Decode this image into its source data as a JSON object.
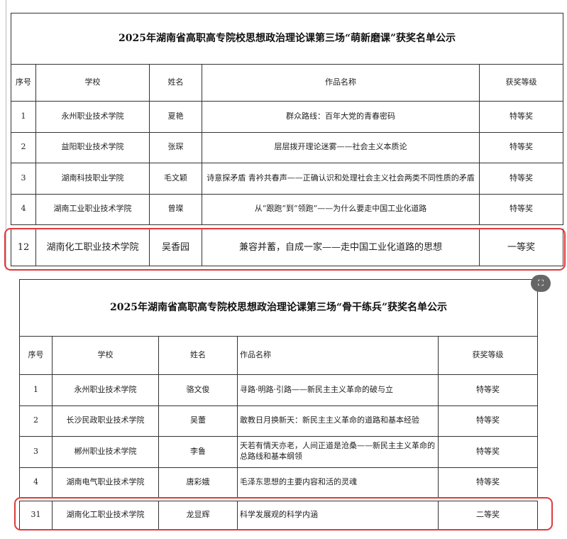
{
  "table1": {
    "title": "2025年湖南省高职高专院校思想政治理论课第三场“萌新磨课”获奖名单公示",
    "headers": [
      "序号",
      "学校",
      "姓名",
      "作品名称",
      "获奖等级"
    ],
    "rows": [
      [
        "1",
        "永州职业技术学院",
        "夏艳",
        "群众路线：百年大党的青春密码",
        "特等奖"
      ],
      [
        "2",
        "益阳职业技术学院",
        "张琛",
        "层层拨开理论迷雾——社会主义本质论",
        "特等奖"
      ],
      [
        "3",
        "湖南科技职业学院",
        "毛文颖",
        "诗意探矛盾 青衿共春声——正确认识和处理社会主义社会两类不同性质的矛盾",
        "特等奖"
      ],
      [
        "4",
        "湖南工业职业技术学院",
        "曾璨",
        "从“跟跑”到“领跑”——为什么要走中国工业化道路",
        "特等奖"
      ]
    ],
    "highlight_row": [
      "12",
      "湖南化工职业技术学院",
      "吴香园",
      "兼容并蓄，自成一家——走中国工业化道路的思想",
      "一等奖"
    ]
  },
  "table2": {
    "title": "2025年湖南省高职高专院校思想政治理论课第三场“骨干练兵”获奖名单公示",
    "headers": [
      "序号",
      "学校",
      "姓名",
      "作品名称",
      "获奖等级"
    ],
    "rows": [
      [
        "1",
        "永州职业技术学院",
        "骆文俊",
        "寻路·明路·引路——新民主主义革命的破与立",
        "特等奖"
      ],
      [
        "2",
        "长沙民政职业技术学院",
        "吴蕾",
        "敢教日月换新天：新民主主义革命的道路和基本经验",
        "特等奖"
      ],
      [
        "3",
        "郴州职业技术学院",
        "李鲁",
        "天若有情天亦老，人间正道是沧桑——新民主主义革命的总路线和基本纲领",
        "特等奖"
      ],
      [
        "4",
        "湖南电气职业技术学院",
        "唐彩娥",
        "毛泽东思想的主要内容和活的灵魂",
        "特等奖"
      ]
    ],
    "highlight_row": [
      "31",
      "湖南化工职业技术学院",
      "龙显辉",
      "科学发展观的科学内涵",
      "二等奖"
    ]
  },
  "highlight_color": "#e03a3a",
  "icons": {
    "fullscreen": "expand-icon"
  }
}
